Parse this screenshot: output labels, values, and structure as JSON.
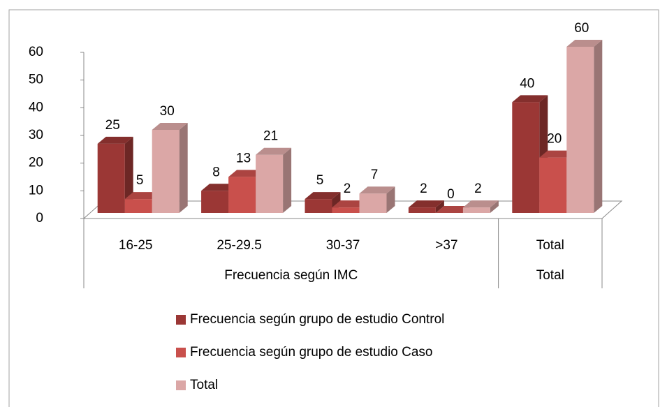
{
  "chart_data": {
    "type": "bar3d",
    "categories": [
      "16-25",
      "25-29.5",
      "30-37",
      ">37",
      "Total"
    ],
    "category_groups": [
      {
        "label": "Frecuencia según IMC",
        "span": 4
      },
      {
        "label": "Total",
        "span": 1
      }
    ],
    "series": [
      {
        "name": "Frecuencia según grupo de estudio Control",
        "color": "#9b3735",
        "values": [
          25,
          8,
          5,
          2,
          40
        ]
      },
      {
        "name": "Frecuencia según grupo de estudio Caso",
        "color": "#c9504c",
        "values": [
          5,
          13,
          2,
          0,
          20
        ]
      },
      {
        "name": "Total",
        "color": "#dba7a6",
        "values": [
          30,
          21,
          7,
          2,
          60
        ]
      }
    ],
    "ylim": [
      0,
      60
    ],
    "yticks": [
      0,
      10,
      20,
      30,
      40,
      50,
      60
    ],
    "legend": "bottom"
  }
}
